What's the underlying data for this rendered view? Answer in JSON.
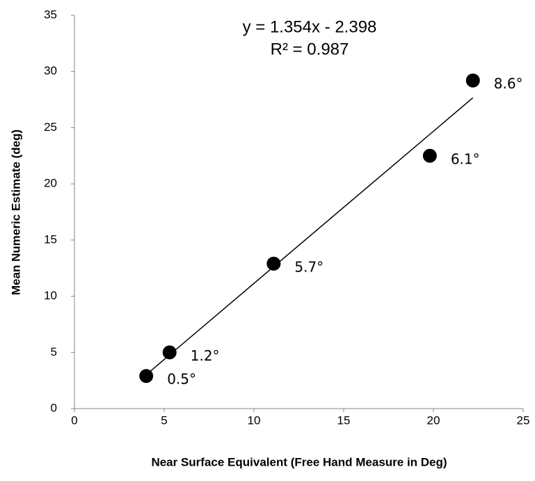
{
  "chart_data": {
    "type": "scatter",
    "x_label": "Near Surface Equivalent (Free Hand Measure in Deg)",
    "y_label": "Mean Numeric Estimate (deg)",
    "x": [
      4.0,
      5.3,
      11.1,
      19.8,
      22.2
    ],
    "values": [
      2.9,
      5.0,
      12.9,
      22.5,
      29.2
    ],
    "labels": [
      "0.5°",
      "1.2°",
      "5.7°",
      "6.1°",
      "8.6°"
    ],
    "color": "#000000",
    "xlim": [
      0,
      25
    ],
    "xticks": [
      0,
      5,
      10,
      15,
      20,
      25
    ],
    "ylim": [
      0,
      35
    ],
    "yticks": [
      0,
      5,
      10,
      15,
      20,
      25,
      30,
      35
    ],
    "grid": false,
    "trendline": {
      "equation": "y = 1.354x - 2.398",
      "r_squared": "R² = 0.987",
      "slope": 1.354,
      "intercept": -2.398
    }
  }
}
